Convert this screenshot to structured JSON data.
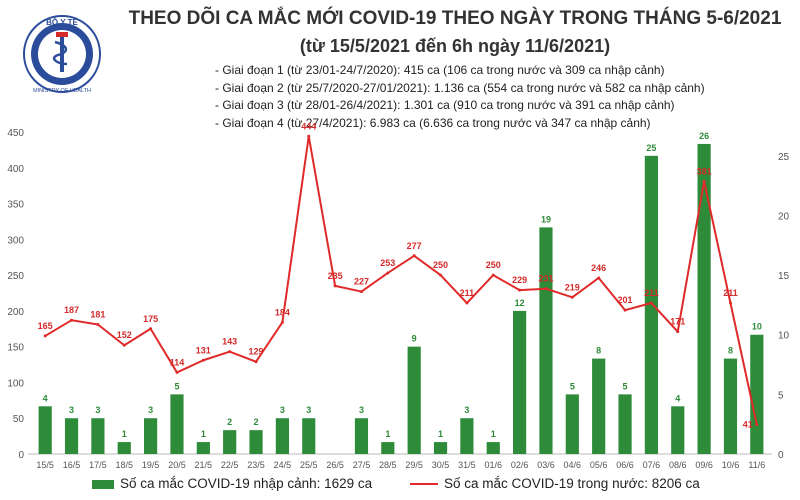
{
  "header": {
    "logo_text": "BỘ Y TẾ",
    "logo_subtext": "MINISTRY OF HEALTH",
    "title": "THEO DÕI CA MẮC MỚI COVID-19 THEO NGÀY TRONG THÁNG 5-6/2021",
    "subtitle": "(từ 15/5/2021 đến 6h ngày 11/6/2021)"
  },
  "notes": [
    "- Giai đoạn 1 (từ 23/01-24/7/2020): 415 ca (106 ca trong nước và 309 ca nhập cảnh)",
    "- Giai đoạn 2 (từ 25/7/2020-27/01/2021): 1.136 ca (554 ca trong nước và 582 ca nhập cảnh)",
    "- Giai đoạn 3 (từ 28/01-26/4/2021): 1.301 ca (910 ca trong nước và 391 ca nhập cảnh)",
    "- Giai đoạn 4 (từ 27/4/2021): 6.983 ca (6.636 ca trong nước và 347 ca nhập cảnh)"
  ],
  "legend": {
    "bar_label": "Số ca mắc COVID-19 nhập cảnh: 1629 ca",
    "line_label": "Số ca mắc COVID-19 trong nước: 8206 ca"
  },
  "colors": {
    "bar": "#2e8b3a",
    "line": "#e02a2a",
    "bar_label": "#2e8b3a",
    "line_label": "#d42a2a",
    "axis_text": "#555555"
  },
  "chart_data": {
    "type": "bar+line",
    "categories": [
      "15/5",
      "16/5",
      "17/5",
      "18/5",
      "19/5",
      "20/5",
      "21/5",
      "22/5",
      "23/5",
      "24/5",
      "25/5",
      "26/5",
      "27/5",
      "28/5",
      "29/5",
      "30/5",
      "31/5",
      "01/6",
      "02/6",
      "03/6",
      "04/6",
      "05/6",
      "06/6",
      "07/6",
      "08/6",
      "09/6",
      "10/6",
      "11/6"
    ],
    "series": [
      {
        "name": "Số ca mắc COVID-19 nhập cảnh: 1629 ca",
        "type": "bar",
        "axis": "right",
        "values": [
          4,
          3,
          3,
          1,
          3,
          5,
          1,
          2,
          2,
          3,
          3,
          null,
          3,
          1,
          9,
          1,
          3,
          1,
          12,
          19,
          5,
          8,
          5,
          25,
          4,
          26,
          8,
          10
        ],
        "labels": [
          "4",
          "3",
          "3",
          "1",
          "3",
          "5",
          "1",
          "2",
          "2",
          "3",
          "3",
          "",
          "3",
          "1",
          "9",
          "1",
          "3",
          "1",
          "12",
          "19",
          "5",
          "8",
          "5",
          "25",
          "4",
          "26",
          "8",
          "10"
        ]
      },
      {
        "name": "Số ca mắc COVID-19 trong nước: 8206 ca",
        "type": "line",
        "axis": "left",
        "values": [
          165,
          187,
          181,
          152,
          175,
          114,
          131,
          143,
          129,
          184,
          444,
          235,
          227,
          253,
          277,
          250,
          211,
          250,
          229,
          231,
          219,
          246,
          201,
          211,
          171,
          381,
          211,
          41
        ],
        "labels": [
          "165",
          "187",
          "181",
          "152",
          "175",
          "114",
          "131",
          "143",
          "129",
          "184",
          "444",
          "235",
          "227",
          "253",
          "277",
          "250",
          "211",
          "250",
          "229",
          "231",
          "219",
          "246",
          "201",
          "211",
          "171",
          "381",
          "211",
          "41"
        ]
      }
    ],
    "y_left": {
      "min": 0,
      "max": 450,
      "ticks": [
        "0",
        "50",
        "100",
        "150",
        "200",
        "250",
        "300",
        "350",
        "400",
        "450"
      ]
    },
    "y_right": {
      "min": 0,
      "max": 27,
      "ticks": [
        "0",
        "5",
        "10",
        "15",
        "20",
        "25"
      ]
    },
    "grid": false,
    "legend_position": "bottom"
  }
}
